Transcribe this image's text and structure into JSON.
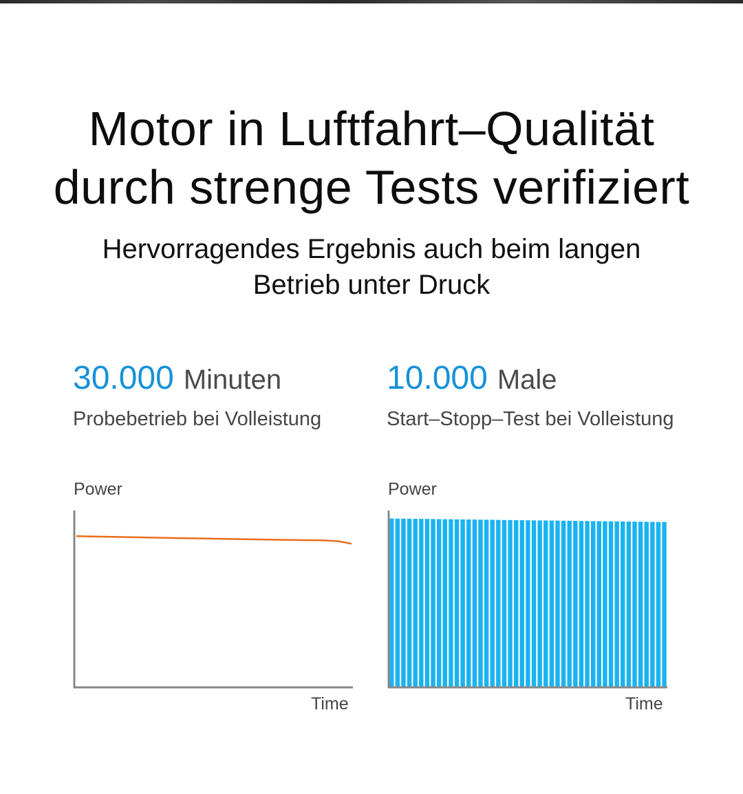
{
  "headline": {
    "line1": "Motor in Luftfahrt–Qualität",
    "line2": "durch strenge Tests verifiziert"
  },
  "subheadline": {
    "line1": "Hervorragendes Ergebnis auch beim langen",
    "line2": "Betrieb unter Druck"
  },
  "stats": [
    {
      "number": "30.000",
      "unit": "Minuten",
      "description": "Probebetrieb bei Volleistung"
    },
    {
      "number": "10.000",
      "unit": "Male",
      "description": "Start–Stopp–Test bei Volleistung"
    }
  ],
  "colors": {
    "accent_blue": "#1592d8",
    "line_orange": "#ea6d1b",
    "bar_blue": "#1ab3f0",
    "axis": "#888888"
  },
  "chart_data": [
    {
      "type": "line",
      "ylabel": "Power",
      "xlabel": "Time",
      "ylim": [
        0,
        1
      ],
      "xlim": [
        0,
        1
      ],
      "grid": false,
      "series": [
        {
          "color": "#ea6d1b",
          "x": [
            0.0,
            0.2,
            0.4,
            0.6,
            0.8,
            0.9,
            0.95,
            0.98,
            1.0
          ],
          "y": [
            0.855,
            0.849,
            0.843,
            0.838,
            0.833,
            0.831,
            0.827,
            0.819,
            0.813
          ]
        }
      ]
    },
    {
      "type": "bar",
      "ylabel": "Power",
      "xlabel": "Time",
      "ylim": [
        0,
        1
      ],
      "grid": false,
      "bar_count": 47,
      "color": "#1ab3f0",
      "start_value": 0.955,
      "end_value": 0.935
    }
  ]
}
